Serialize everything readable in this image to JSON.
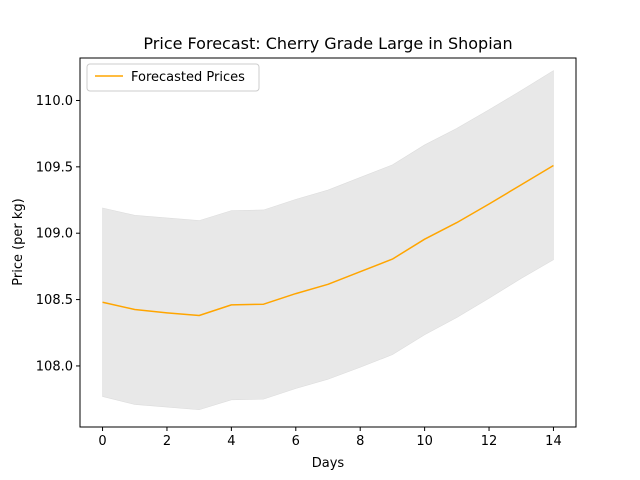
{
  "chart_data": {
    "type": "line",
    "title": "Price Forecast: Cherry Grade Large in Shopian",
    "xlabel": "Days",
    "ylabel": "Price (per kg)",
    "xlim": [
      -0.7,
      14.7
    ],
    "ylim": [
      107.54,
      110.32
    ],
    "xticks": [
      0,
      2,
      4,
      6,
      8,
      10,
      12,
      14
    ],
    "yticks": [
      108.0,
      108.5,
      109.0,
      109.5,
      110.0
    ],
    "ytick_labels": [
      "108.0",
      "108.5",
      "109.0",
      "109.5",
      "110.0"
    ],
    "grid": false,
    "legend": "top-left",
    "series": [
      {
        "name": "Forecasted Prices",
        "color": "#ffa500",
        "x": [
          0,
          1,
          2,
          3,
          4,
          5,
          6,
          7,
          8,
          9,
          10,
          11,
          12,
          13,
          14
        ],
        "y": [
          108.48,
          108.425,
          108.4,
          108.38,
          108.46,
          108.465,
          108.545,
          108.615,
          108.71,
          108.805,
          108.955,
          109.08,
          109.22,
          109.365,
          109.51
        ]
      }
    ],
    "confidence_band": {
      "color": "#e8e8e8",
      "lower": [
        107.77,
        107.71,
        107.69,
        107.67,
        107.745,
        107.75,
        107.83,
        107.9,
        107.99,
        108.085,
        108.235,
        108.365,
        108.51,
        108.66,
        108.8
      ],
      "upper": [
        109.19,
        109.135,
        109.115,
        109.095,
        109.17,
        109.175,
        109.255,
        109.325,
        109.42,
        109.515,
        109.665,
        109.79,
        109.93,
        110.075,
        110.225
      ]
    }
  }
}
